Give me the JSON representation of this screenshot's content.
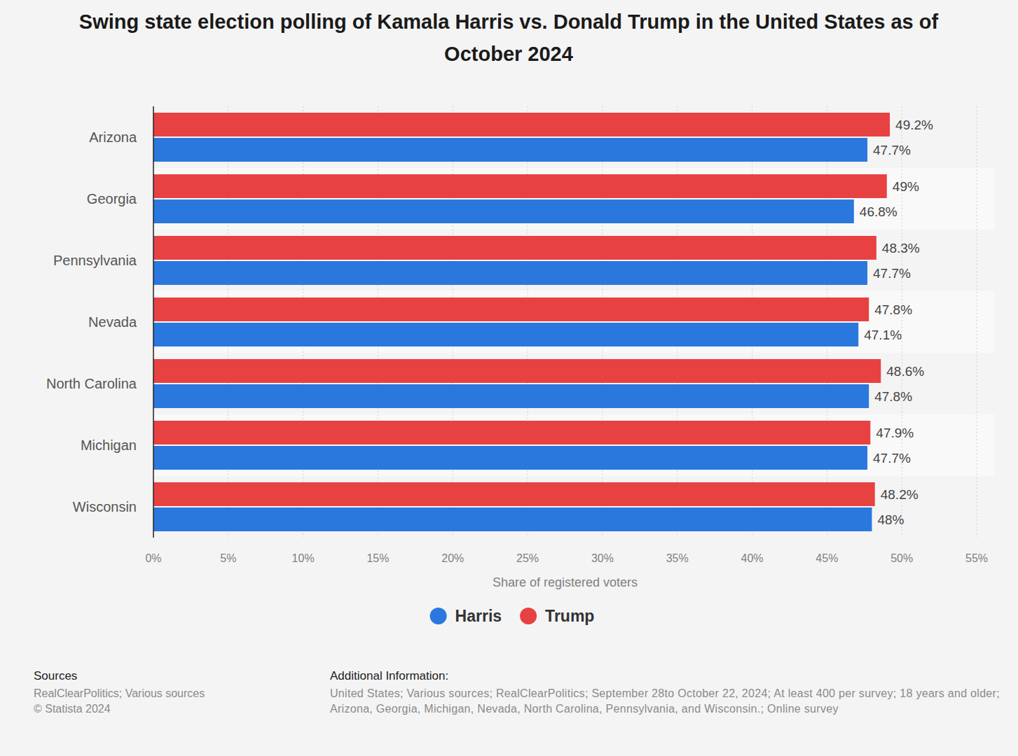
{
  "chart_data": {
    "type": "bar",
    "orientation": "horizontal",
    "title": "Swing state election polling of Kamala Harris vs. Donald Trump in the United States as of October 2024",
    "x_label": "Share of registered voters",
    "categories": [
      "Arizona",
      "Georgia",
      "Pennsylvania",
      "Nevada",
      "North Carolina",
      "Michigan",
      "Wisconsin"
    ],
    "series": [
      {
        "name": "Harris",
        "color": "#2a78de",
        "values": [
          47.7,
          46.8,
          47.7,
          47.1,
          47.8,
          47.7,
          48
        ],
        "value_labels": [
          "47.7%",
          "46.8%",
          "47.7%",
          "47.1%",
          "47.8%",
          "47.7%",
          "48%"
        ]
      },
      {
        "name": "Trump",
        "color": "#e84142",
        "values": [
          49.2,
          49,
          48.3,
          47.8,
          48.6,
          47.9,
          48.2
        ],
        "value_labels": [
          "49.2%",
          "49%",
          "48.3%",
          "47.8%",
          "48.6%",
          "47.9%",
          "48.2%"
        ]
      }
    ],
    "xlim": [
      0,
      55
    ],
    "xticks": [
      {
        "value": 0,
        "label": "0%"
      },
      {
        "value": 5,
        "label": "5%"
      },
      {
        "value": 10,
        "label": "10%"
      },
      {
        "value": 15,
        "label": "15%"
      },
      {
        "value": 20,
        "label": "20%"
      },
      {
        "value": 25,
        "label": "25%"
      },
      {
        "value": 30,
        "label": "30%"
      },
      {
        "value": 35,
        "label": "35%"
      },
      {
        "value": 40,
        "label": "40%"
      },
      {
        "value": 45,
        "label": "45%"
      },
      {
        "value": 50,
        "label": "50%"
      },
      {
        "value": 55,
        "label": "55%"
      }
    ],
    "grid": true,
    "legend": "bottom",
    "data_labels": true,
    "annotations": [
      "Sources",
      "RealClearPolitics; Various sources",
      "© Statista 2024",
      "Additional Information:",
      "United States; Various sources; RealClearPolitics; September 28to October 22, 2024; At least 400 per survey; 18 years and older; Arizona, Georgia, Michigan, Nevada, North Carolina, Pennsylvania, and Wisconsin.; Online survey"
    ]
  }
}
